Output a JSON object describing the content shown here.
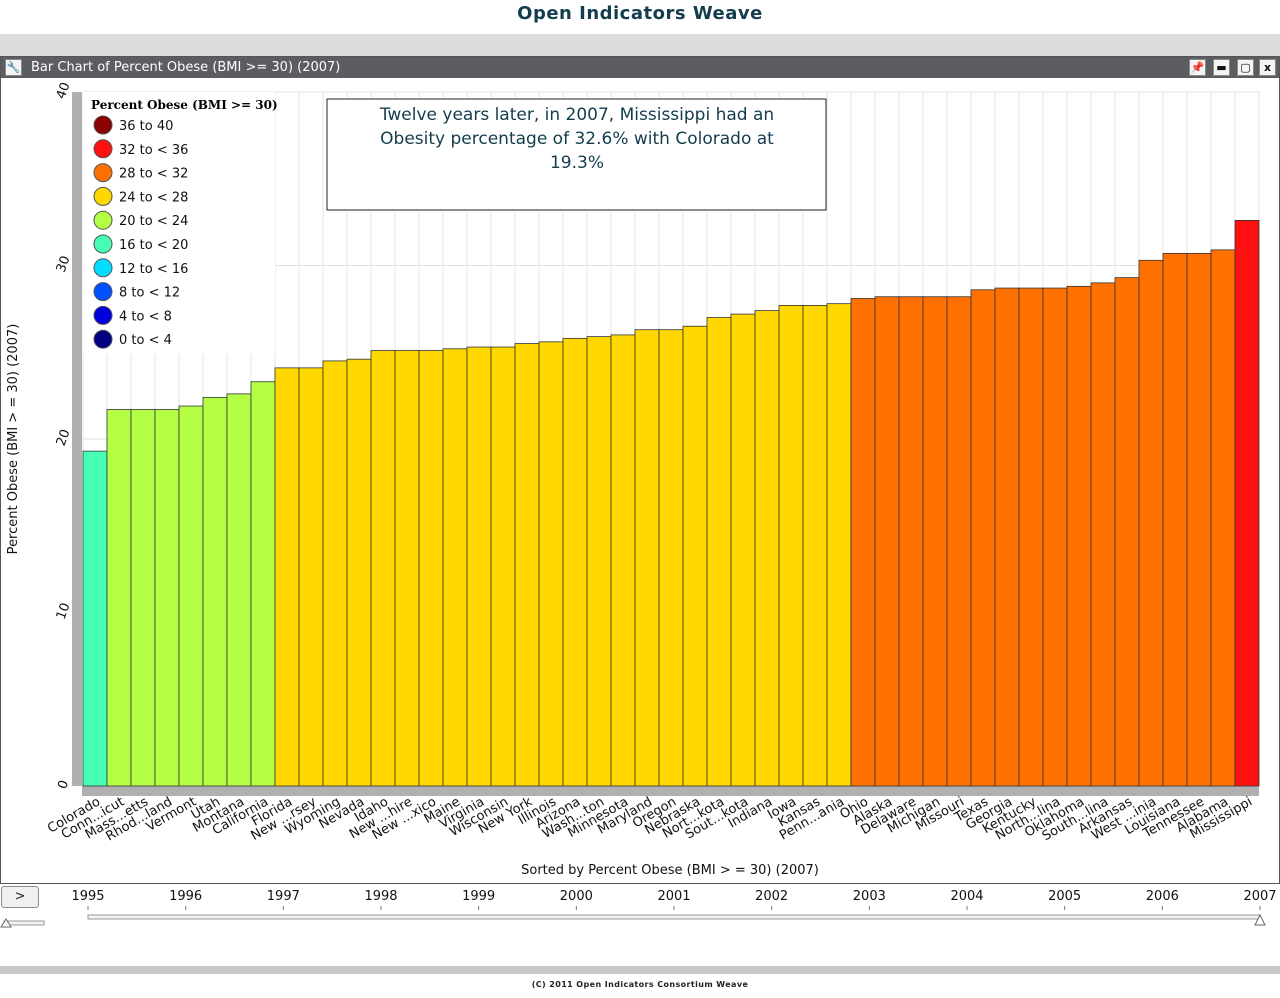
{
  "app": {
    "title": "Open Indicators Weave",
    "footer": "(C) 2011 Open Indicators Consortium Weave"
  },
  "window": {
    "title": "Bar Chart of Percent Obese (BMI >= 30) (2007)",
    "buttons": {
      "wrench": "🔧",
      "pin": "📌",
      "minimize": "▬",
      "maximize": "▢",
      "close": "x"
    }
  },
  "annotation": {
    "lines": [
      "Twelve years later, in 2007, Mississippi had an",
      "Obesity percentage of 32.6% with Colorado at",
      "19.3%"
    ]
  },
  "legend": {
    "title": "Percent Obese (BMI >= 30)",
    "items": [
      {
        "label": "36 to 40",
        "color": "#8b0000"
      },
      {
        "label": "32 to  <  36",
        "color": "#ff1010"
      },
      {
        "label": "28 to  <  32",
        "color": "#ff7000"
      },
      {
        "label": "24 to  <  28",
        "color": "#ffd800"
      },
      {
        "label": "20 to  <  24",
        "color": "#b4ff46"
      },
      {
        "label": "16 to  <  20",
        "color": "#46ffb4"
      },
      {
        "label": "12 to  <  16",
        "color": "#00ddff"
      },
      {
        "label": "8 to  <  12",
        "color": "#0050ff"
      },
      {
        "label": "4 to  <  8",
        "color": "#0000dd"
      },
      {
        "label": "0 to  <  4",
        "color": "#000080"
      }
    ]
  },
  "timeline": {
    "play_label": ">",
    "years": [
      "1995",
      "1996",
      "1997",
      "1998",
      "1999",
      "2000",
      "2001",
      "2002",
      "2003",
      "2004",
      "2005",
      "2006",
      "2007"
    ],
    "selected": "2007"
  },
  "chart_data": {
    "type": "bar",
    "title": "Bar Chart of Percent Obese (BMI >= 30) (2007)",
    "xlabel": "Sorted by Percent Obese (BMI > = 30) (2007)",
    "ylabel": "Percent Obese (BMI > = 30) (2007)",
    "ylim": [
      0,
      40
    ],
    "yticks": [
      0,
      10,
      20,
      30,
      40
    ],
    "grid": true,
    "legend_position": "top-left",
    "categories": [
      "Colorado",
      "Conn...icut",
      "Mass...etts",
      "Rhod...land",
      "Vermont",
      "Utah",
      "Montana",
      "California",
      "Florida",
      "New ...rsey",
      "Wyoming",
      "Nevada",
      "Idaho",
      "New ...hire",
      "New ...xico",
      "Maine",
      "Virginia",
      "Wisconsin",
      "New York",
      "Illinois",
      "Arizona",
      "Wash...ton",
      "Minnesota",
      "Maryland",
      "Oregon",
      "Nebraska",
      "Nort...kota",
      "Sout...kota",
      "Indiana",
      "Iowa",
      "Kansas",
      "Penn...ania",
      "Ohio",
      "Alaska",
      "Delaware",
      "Michigan",
      "Missouri",
      "Texas",
      "Georgia",
      "Kentucky",
      "North...lina",
      "Oklahoma",
      "South...lina",
      "Arkansas",
      "West ...inia",
      "Louisiana",
      "Tennessee",
      "Alabama",
      "Mississippi"
    ],
    "values": [
      19.3,
      21.7,
      21.7,
      21.7,
      21.9,
      22.4,
      22.6,
      23.3,
      24.1,
      24.1,
      24.5,
      24.6,
      25.1,
      25.1,
      25.1,
      25.2,
      25.3,
      25.3,
      25.5,
      25.6,
      25.8,
      25.9,
      26.0,
      26.3,
      26.3,
      26.5,
      27.0,
      27.2,
      27.4,
      27.7,
      27.7,
      27.8,
      28.1,
      28.2,
      28.2,
      28.2,
      28.2,
      28.6,
      28.7,
      28.7,
      28.7,
      28.8,
      29.0,
      29.3,
      30.3,
      30.7,
      30.7,
      30.9,
      32.6
    ]
  }
}
